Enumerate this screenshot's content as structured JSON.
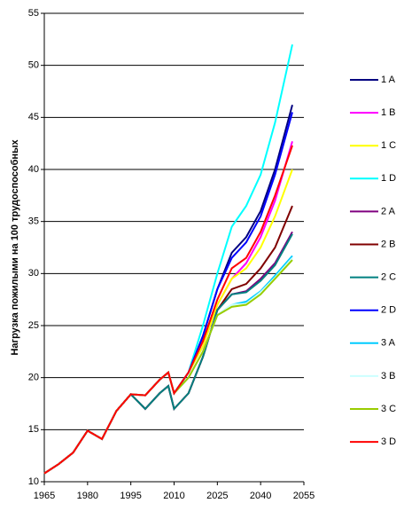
{
  "chart_data": {
    "type": "line",
    "y_label": "Нагрузка пожилыми на 100 трудоспособных",
    "x": [
      1965,
      1970,
      1975,
      1980,
      1985,
      1990,
      1995,
      2000,
      2005,
      2008,
      2010,
      2015,
      2020,
      2025,
      2030,
      2035,
      2040,
      2045,
      2051
    ],
    "xlim": [
      1965,
      2055
    ],
    "xticks": [
      1965,
      1980,
      1995,
      2010,
      2025,
      2040,
      2055
    ],
    "ylim": [
      10,
      55
    ],
    "yticks": [
      10,
      15,
      20,
      25,
      30,
      35,
      40,
      45,
      50,
      55
    ],
    "grid": true,
    "legend": "right",
    "series": [
      {
        "name": "1 A",
        "color": "#000080",
        "values": [
          10.8,
          11.7,
          12.8,
          14.9,
          14.1,
          16.8,
          18.4,
          18.3,
          19.8,
          20.5,
          18.5,
          20.5,
          24,
          28.5,
          32,
          33.5,
          36,
          40,
          46.2
        ]
      },
      {
        "name": "1 B",
        "color": "#ff00ff",
        "values": [
          10.8,
          11.7,
          12.8,
          14.9,
          14.1,
          16.8,
          18.4,
          18.3,
          19.8,
          20.5,
          18.5,
          20.5,
          23,
          27,
          29.5,
          31,
          33.5,
          37,
          42.7
        ]
      },
      {
        "name": "1 C",
        "color": "#ffff00",
        "values": [
          10.8,
          11.7,
          12.8,
          14.9,
          14.1,
          16.8,
          18.4,
          18.3,
          19.8,
          20.5,
          18.5,
          20.5,
          23,
          27,
          29.5,
          30.5,
          32.5,
          35.5,
          40
        ]
      },
      {
        "name": "1 D",
        "color": "#00ffff",
        "values": [
          10.8,
          11.7,
          12.8,
          14.9,
          14.1,
          16.8,
          18.4,
          18.3,
          19.8,
          20.5,
          18.5,
          20.5,
          25,
          30,
          34.5,
          36.5,
          39.5,
          44.5,
          52
        ]
      },
      {
        "name": "2 A",
        "color": "#800080",
        "values": [
          10.8,
          11.7,
          12.8,
          14.9,
          14.1,
          16.8,
          18.4,
          17,
          18.5,
          19.2,
          17,
          18.5,
          22,
          26.5,
          28,
          28.3,
          29.5,
          31,
          34
        ]
      },
      {
        "name": "2 B",
        "color": "#800000",
        "values": [
          10.8,
          11.7,
          12.8,
          14.9,
          14.1,
          16.8,
          18.4,
          17,
          18.5,
          19.2,
          17,
          18.5,
          22,
          26.5,
          28.5,
          29,
          30.5,
          32.5,
          36.5
        ]
      },
      {
        "name": "2 C",
        "color": "#008080",
        "values": [
          10.8,
          11.7,
          12.8,
          14.9,
          14.1,
          16.8,
          18.4,
          17,
          18.5,
          19.2,
          17,
          18.5,
          22,
          26.5,
          28,
          28.2,
          29.3,
          30.8,
          33.8
        ]
      },
      {
        "name": "2 D",
        "color": "#0000ff",
        "values": [
          10.8,
          11.7,
          12.8,
          14.9,
          14.1,
          16.8,
          18.4,
          18.3,
          19.8,
          20.5,
          18.5,
          20.5,
          24,
          28.5,
          31.5,
          33,
          35.5,
          39.5,
          45.5
        ]
      },
      {
        "name": "3 A",
        "color": "#00ccff",
        "values": [
          10.8,
          11.7,
          12.8,
          14.9,
          14.1,
          16.8,
          18.4,
          18.3,
          19.8,
          20.5,
          18.5,
          20,
          22.5,
          26,
          27,
          27.3,
          28.3,
          29.8,
          31.7
        ]
      },
      {
        "name": "3 B",
        "color": "#ccffff",
        "values": [
          10.8,
          11.7,
          12.8,
          14.9,
          14.1,
          16.8,
          18.4,
          18.3,
          19.8,
          20.5,
          18.5,
          20,
          22.5,
          26,
          27,
          27.1,
          28.2,
          29.6,
          31.5
        ]
      },
      {
        "name": "3 C",
        "color": "#99cc00",
        "values": [
          10.8,
          11.7,
          12.8,
          14.9,
          14.1,
          16.8,
          18.4,
          18.3,
          19.8,
          20.5,
          18.5,
          20,
          22.5,
          26,
          26.8,
          27,
          28,
          29.5,
          31.3
        ]
      },
      {
        "name": "3 D",
        "color": "#ff0000",
        "values": [
          10.8,
          11.7,
          12.8,
          14.9,
          14.1,
          16.8,
          18.4,
          18.3,
          19.8,
          20.5,
          18.5,
          20.5,
          23.5,
          27.5,
          30.5,
          31.5,
          34,
          37.5,
          42.3
        ]
      }
    ]
  }
}
